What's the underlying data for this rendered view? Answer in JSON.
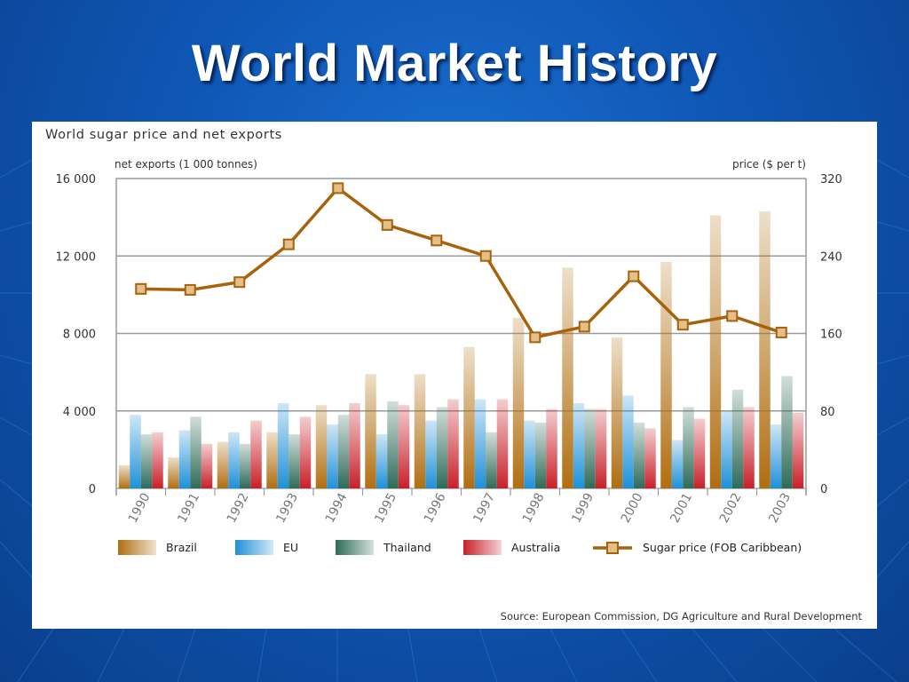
{
  "slide": {
    "title": "World Market History"
  },
  "colors": {
    "background": "#0f56b4",
    "brazil": "#b06e10",
    "eu": "#1e90d8",
    "thailand": "#2e6b58",
    "australia": "#c8202a",
    "price_line": "#a8620a",
    "price_marker_fill": "#e3c08a"
  },
  "chart_data": {
    "type": "bar",
    "title": "World sugar price and net exports",
    "source": "Source: European Commission, DG Agriculture and Rural Development",
    "y_left_label": "net exports (1 000 tonnes)",
    "y_right_label": "price ($ per t)",
    "y_left_ticks": [
      "16 000",
      "12 000",
      "8 000",
      "4 000",
      "0"
    ],
    "y_right_ticks": [
      "320",
      "240",
      "160",
      "80",
      "0"
    ],
    "ylim_left": [
      0,
      16000
    ],
    "ylim_right": [
      0,
      320
    ],
    "categories": [
      "1990",
      "1991",
      "1992",
      "1993",
      "1994",
      "1995",
      "1996",
      "1997",
      "1998",
      "1999",
      "2000",
      "2001",
      "2002",
      "2003"
    ],
    "series": [
      {
        "name": "Brazil",
        "color": "#b06e10",
        "values": [
          1200,
          1600,
          2400,
          2900,
          4300,
          5900,
          5900,
          7300,
          8800,
          11400,
          7800,
          11700,
          14100,
          14300
        ]
      },
      {
        "name": "EU",
        "color": "#1e90d8",
        "values": [
          3800,
          3000,
          2900,
          4400,
          3300,
          2800,
          3500,
          4600,
          3500,
          4400,
          4800,
          2500,
          4000,
          3300
        ]
      },
      {
        "name": "Thailand",
        "color": "#2e6b58",
        "values": [
          2800,
          3700,
          2300,
          2800,
          3800,
          4500,
          4200,
          2900,
          3400,
          4100,
          3400,
          4200,
          5100,
          5800
        ]
      },
      {
        "name": "Australia",
        "color": "#c8202a",
        "values": [
          2900,
          2300,
          3500,
          3700,
          4400,
          4300,
          4600,
          4600,
          4100,
          4100,
          3100,
          3600,
          4200,
          3900
        ]
      }
    ],
    "line_series": {
      "name": "Sugar price (FOB Caribbean)",
      "axis": "right",
      "values": [
        206,
        205,
        213,
        252,
        310,
        272,
        256,
        240,
        156,
        167,
        219,
        169,
        178,
        161
      ]
    },
    "legend_position": "bottom",
    "grid": "horizontal"
  }
}
